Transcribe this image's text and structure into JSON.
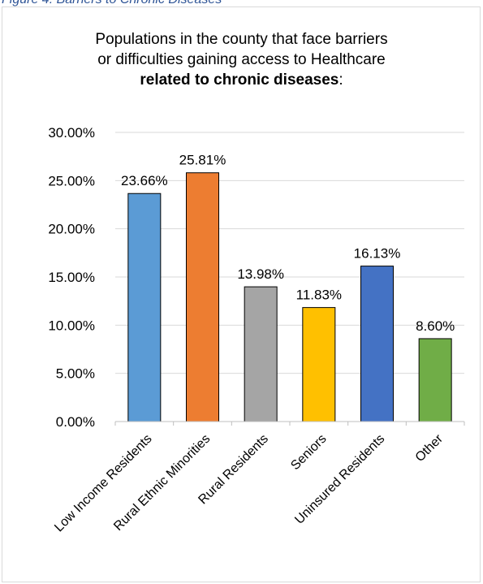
{
  "caption": "Figure 4: Barriers to Chronic Diseases",
  "chart_data": {
    "type": "bar",
    "title_line1": "Populations in the county that face barriers",
    "title_line2": "or difficulties gaining access to Healthcare",
    "title_line3_bold": "related to chronic diseases",
    "title_line3_suffix": ":",
    "categories": [
      "Low Income Residents",
      "Rural Ethnic Minorities",
      "Rural Residents",
      "Seniors",
      "Uninsured Residents",
      "Other"
    ],
    "values": [
      23.66,
      25.81,
      13.98,
      11.83,
      16.13,
      8.6
    ],
    "value_labels": [
      "23.66%",
      "25.81%",
      "13.98%",
      "11.83%",
      "16.13%",
      "8.60%"
    ],
    "colors": [
      "#5b9bd5",
      "#ed7d31",
      "#a5a5a5",
      "#ffc000",
      "#4472c4",
      "#70ad47"
    ],
    "ylim": [
      0,
      30
    ],
    "yticks": [
      0,
      5,
      10,
      15,
      20,
      25,
      30
    ],
    "ytick_labels": [
      "0.00%",
      "5.00%",
      "10.00%",
      "15.00%",
      "20.00%",
      "25.00%",
      "30.00%"
    ],
    "grid": true,
    "legend": "none"
  }
}
